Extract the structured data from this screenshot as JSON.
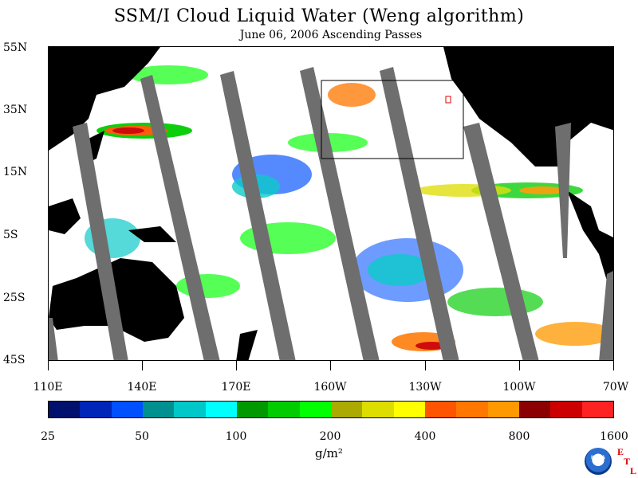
{
  "title": "SSM/I Cloud Liquid Water (Weng algorithm)",
  "subtitle": "June 06, 2006  Ascending Passes",
  "lat_labels": [
    "55N",
    "35N",
    "15N",
    "5S",
    "25S",
    "45S"
  ],
  "lon_labels": [
    "110E",
    "140E",
    "170E",
    "160W",
    "130W",
    "100W",
    "70W"
  ],
  "colorbar": {
    "labels": [
      "25",
      "50",
      "100",
      "200",
      "400",
      "800",
      "1600"
    ],
    "colors": [
      "#00106e",
      "#0025b8",
      "#0050ff",
      "#009090",
      "#00c8c8",
      "#00ffff",
      "#009900",
      "#00cc00",
      "#00ff00",
      "#aaaa00",
      "#dddd00",
      "#ffff00",
      "#ff5500",
      "#ff7700",
      "#ff9900",
      "#8b0000",
      "#cc0000",
      "#ff2222"
    ],
    "units": "g/m²"
  },
  "logo": {
    "text": "NOAA",
    "etl_letters": [
      "E",
      "T",
      "L"
    ]
  },
  "colors": {
    "land": "#000000",
    "swath_gap": "#6e6e6e",
    "ocean": "#ffffff",
    "box": "#000000"
  }
}
